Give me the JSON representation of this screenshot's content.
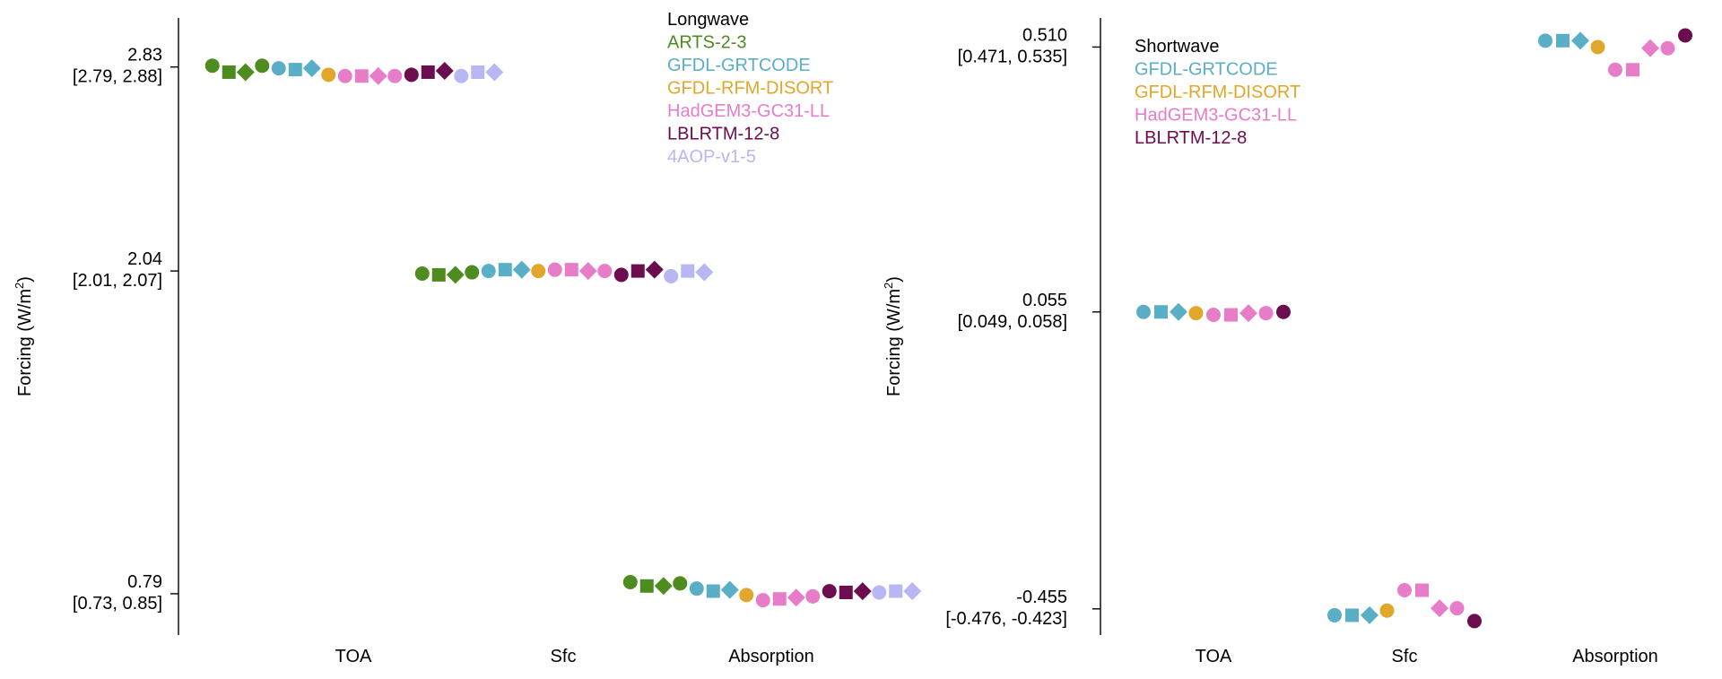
{
  "colors": {
    "ARTS-2-3": "#4f8c1f",
    "GFDL-GRTCODE": "#5aaec6",
    "GFDL-RFM-DISORT": "#e0a72a",
    "HadGEM3-GC31-LL": "#e77dc9",
    "LBLRTM-12-8": "#6b0d4f",
    "4AOP-v1-5": "#b8b6f3"
  },
  "chart_data": [
    {
      "type": "scatter",
      "title": "",
      "legend_title": "Longwave",
      "legend_placement": "top-center",
      "ylabel": "Forcing (W/m²)",
      "ylabel_text": "Forcing (W/m",
      "ylabel_sup": "2",
      "ylabel_close": ")",
      "categories": [
        "TOA",
        "Sfc",
        "Absorption"
      ],
      "grid": false,
      "ylim": [
        0.63,
        3.02
      ],
      "yticks": [
        {
          "value": 0.79,
          "label": "0.79",
          "range": "[0.73, 0.85]"
        },
        {
          "value": 2.04,
          "label": "2.04",
          "range": "[2.01, 2.07]"
        },
        {
          "value": 2.83,
          "label": "2.83",
          "range": "[2.79, 2.88]"
        }
      ],
      "marker_order": [
        "circle",
        "square",
        "diamond"
      ],
      "series": [
        {
          "name": "ARTS-2-3",
          "values": {
            "TOA": [
              2.835,
              2.81,
              2.81,
              2.835
            ],
            "Sfc": [
              2.03,
              2.025,
              2.025,
              2.035
            ],
            "Absorption": [
              0.835,
              0.82,
              0.82,
              0.83
            ]
          }
        },
        {
          "name": "GFDL-GRTCODE",
          "values": {
            "TOA": [
              2.825,
              2.82,
              2.825
            ],
            "Sfc": [
              2.04,
              2.045,
              2.045
            ],
            "Absorption": [
              0.81,
              0.8,
              0.805
            ]
          }
        },
        {
          "name": "GFDL-RFM-DISORT",
          "values": {
            "TOA": [
              2.8
            ],
            "Sfc": [
              2.04
            ],
            "Absorption": [
              0.785
            ]
          }
        },
        {
          "name": "HadGEM3-GC31-LL",
          "values": {
            "TOA": [
              2.795,
              2.795,
              2.795,
              2.795
            ],
            "Sfc": [
              2.045,
              2.045,
              2.04,
              2.04
            ],
            "Absorption": [
              0.765,
              0.77,
              0.775,
              0.78
            ]
          }
        },
        {
          "name": "LBLRTM-12-8",
          "values": {
            "TOA": [
              2.8,
              2.81,
              2.815
            ],
            "Sfc": [
              2.025,
              2.04,
              2.045
            ],
            "Absorption": [
              0.8,
              0.795,
              0.8
            ]
          }
        },
        {
          "name": "4AOP-v1-5",
          "values": {
            "TOA": [
              2.795,
              2.81,
              2.81
            ],
            "Sfc": [
              2.02,
              2.04,
              2.035
            ],
            "Absorption": [
              0.795,
              0.8,
              0.8
            ]
          }
        }
      ]
    },
    {
      "type": "scatter",
      "title": "",
      "legend_title": "Shortwave",
      "legend_placement": "top-left",
      "ylabel": "Forcing (W/m²)",
      "ylabel_text": "Forcing (W/m",
      "ylabel_sup": "2",
      "ylabel_close": ")",
      "categories": [
        "TOA",
        "Sfc",
        "Absorption"
      ],
      "grid": false,
      "ylim": [
        -0.5,
        0.56
      ],
      "yticks": [
        {
          "value": -0.455,
          "label": "-0.455",
          "range": "[-0.476, -0.423]"
        },
        {
          "value": 0.055,
          "label": "0.055",
          "range": "[0.049, 0.058]"
        },
        {
          "value": 0.51,
          "label": "0.510",
          "range": "[0.471, 0.535]"
        }
      ],
      "marker_order": [
        "circle",
        "square",
        "diamond"
      ],
      "series": [
        {
          "name": "GFDL-GRTCODE",
          "values": {
            "TOA": [
              0.055,
              0.055,
              0.055
            ],
            "Sfc": [
              -0.466,
              -0.466,
              -0.466
            ],
            "Absorption": [
              0.521,
              0.521,
              0.521
            ]
          }
        },
        {
          "name": "GFDL-RFM-DISORT",
          "values": {
            "TOA": [
              0.053
            ],
            "Sfc": [
              -0.458
            ],
            "Absorption": [
              0.51
            ]
          }
        },
        {
          "name": "HadGEM3-GC31-LL",
          "values": {
            "TOA": [
              0.05,
              0.05,
              0.053,
              0.053
            ],
            "Sfc": [
              -0.423,
              -0.423,
              -0.454,
              -0.454
            ],
            "Absorption": [
              0.471,
              0.471,
              0.508,
              0.508
            ]
          }
        },
        {
          "name": "LBLRTM-12-8",
          "values": {
            "TOA": [
              0.055
            ],
            "Sfc": [
              -0.476
            ],
            "Absorption": [
              0.53
            ]
          }
        }
      ]
    }
  ]
}
